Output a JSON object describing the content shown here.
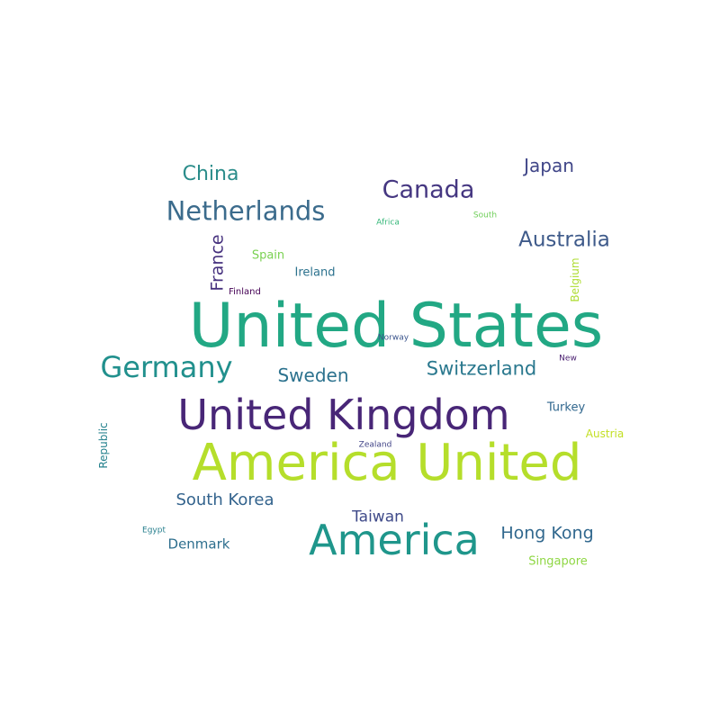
{
  "word_cloud": {
    "words": [
      {
        "text": "United States",
        "color": "#22a884"
      },
      {
        "text": "America United",
        "color": "#b5de2b"
      },
      {
        "text": "United Kingdom",
        "color": "#482677"
      },
      {
        "text": "America",
        "color": "#1f968b"
      },
      {
        "text": "Germany",
        "color": "#21908d"
      },
      {
        "text": "Netherlands",
        "color": "#3b6b8c"
      },
      {
        "text": "Canada",
        "color": "#453781"
      },
      {
        "text": "Australia",
        "color": "#3e5a8a"
      },
      {
        "text": "Switzerland",
        "color": "#2a788e"
      },
      {
        "text": "South Korea",
        "color": "#33638d"
      },
      {
        "text": "China",
        "color": "#2a8c8a"
      },
      {
        "text": "Japan",
        "color": "#404688"
      },
      {
        "text": "Sweden",
        "color": "#2c728e"
      },
      {
        "text": "Hong Kong",
        "color": "#31688e"
      },
      {
        "text": "Taiwan",
        "color": "#3f4a89"
      },
      {
        "text": "France",
        "color": "#46317e"
      },
      {
        "text": "Denmark",
        "color": "#2e6f8e"
      },
      {
        "text": "Singapore",
        "color": "#8fd744"
      },
      {
        "text": "Turkey",
        "color": "#31678e"
      },
      {
        "text": "Austria",
        "color": "#c2df23"
      },
      {
        "text": "Ireland",
        "color": "#2c728e"
      },
      {
        "text": "Spain",
        "color": "#7ad151"
      },
      {
        "text": "Belgium",
        "color": "#addc30"
      },
      {
        "text": "Republic",
        "color": "#26828e"
      },
      {
        "text": "Finland",
        "color": "#440154"
      },
      {
        "text": "Norway",
        "color": "#3a548c"
      },
      {
        "text": "Zealand",
        "color": "#414487"
      },
      {
        "text": "New",
        "color": "#481d6f"
      },
      {
        "text": "Africa",
        "color": "#35b779"
      },
      {
        "text": "South",
        "color": "#6ece58"
      },
      {
        "text": "Egypt",
        "color": "#277f8e"
      }
    ]
  }
}
